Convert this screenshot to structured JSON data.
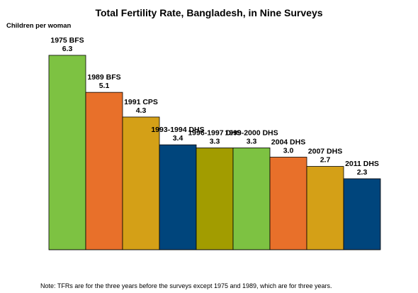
{
  "chart_data": {
    "type": "bar",
    "title": "Total Fertility Rate, Bangladesh, in Nine Surveys",
    "ylabel": "Children per woman",
    "xlabel": "",
    "ylim": [
      0,
      6.6
    ],
    "grid": false,
    "legend": "none",
    "categories": [
      "1975 BFS",
      "1989 BFS",
      "1991 CPS",
      "1993-1994 DHS",
      "1996-1997 DHS",
      "1999-2000 DHS",
      "2004 DHS",
      "2007 DHS",
      "2011 DHS"
    ],
    "values": [
      6.3,
      5.1,
      4.3,
      3.4,
      3.3,
      3.3,
      3.0,
      2.7,
      2.3
    ],
    "value_labels": [
      "6.3",
      "5.1",
      "4.3",
      "3.4",
      "3.3",
      "3.3",
      "3.0",
      "2.7",
      "2.3"
    ],
    "colors": [
      "#7DC242",
      "#E8702A",
      "#D4A017",
      "#00457C",
      "#A29C00",
      "#7DC242",
      "#E8702A",
      "#D4A017",
      "#00457C"
    ],
    "note": "Note: TFRs are for the three years before the surveys except 1975 and 1989, which are for three years."
  }
}
